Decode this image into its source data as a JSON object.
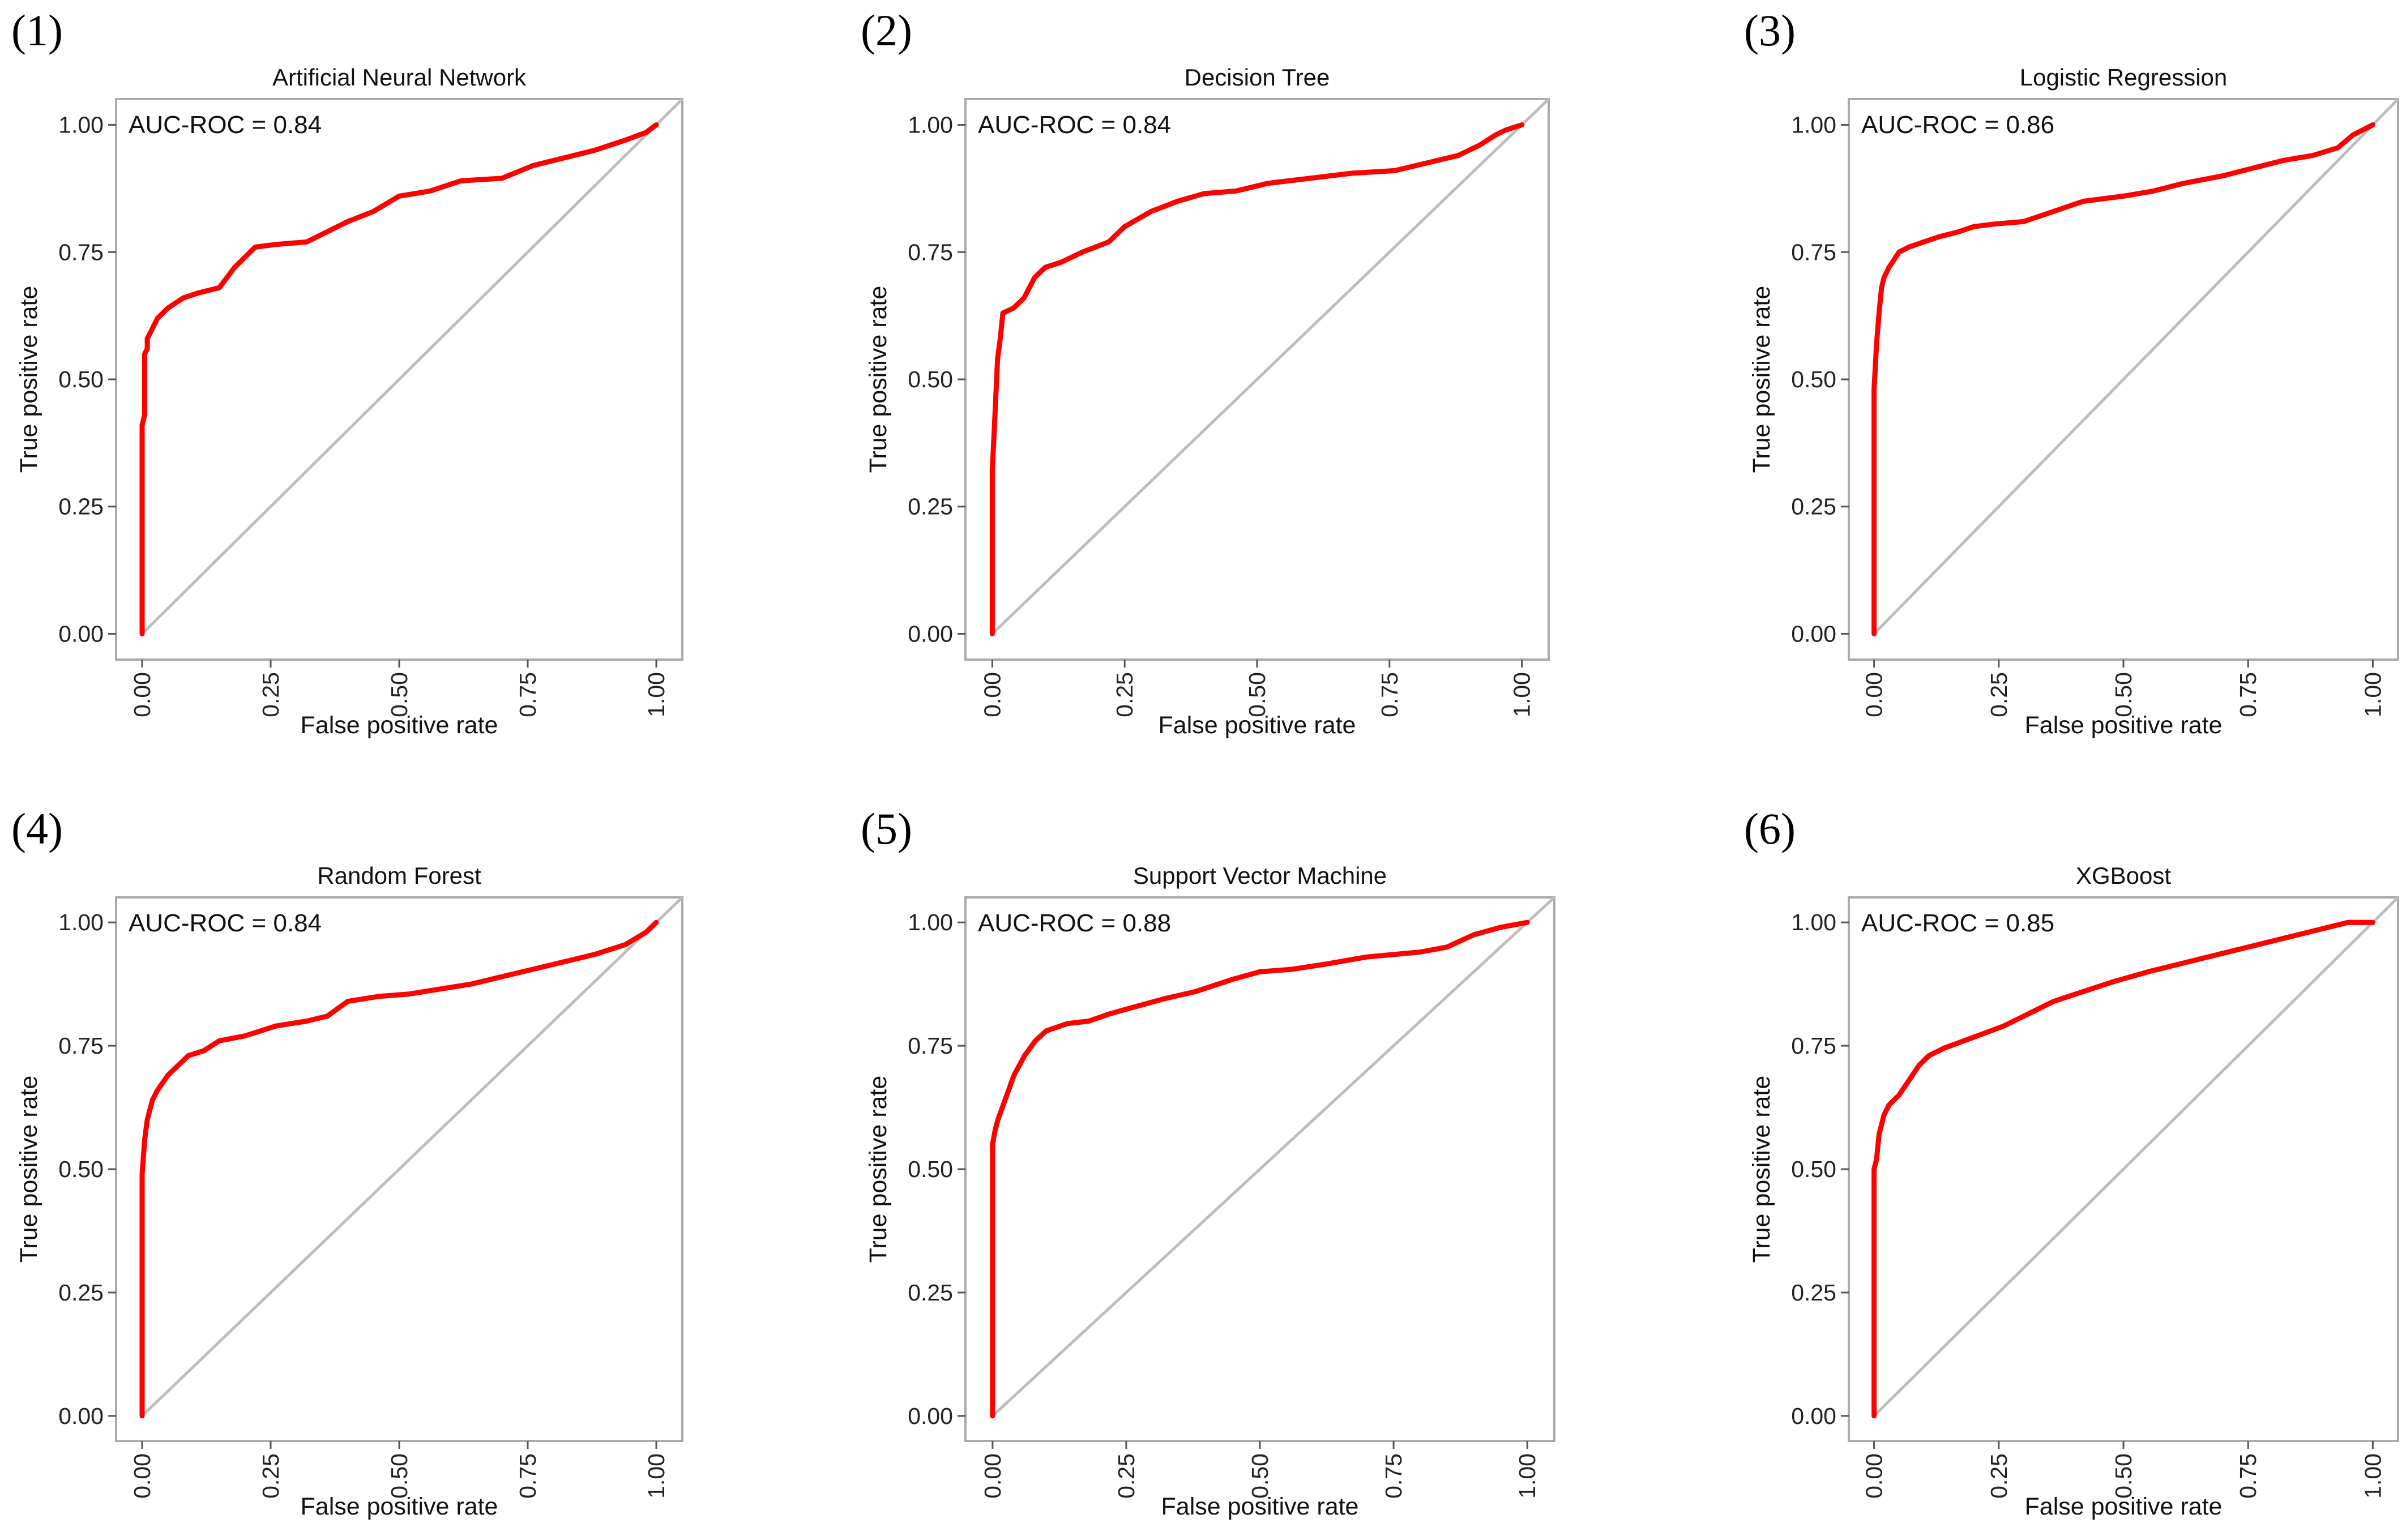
{
  "chart_data": [
    {
      "panel": "(1)",
      "type": "line",
      "title": "Artificial Neural Network",
      "xlabel": "False positive rate",
      "ylabel": "True positive rate",
      "annotation": "AUC-ROC = 0.84",
      "xlim": [
        0,
        1
      ],
      "ylim": [
        0,
        1
      ],
      "xticks": [
        "0.00",
        "0.25",
        "0.50",
        "0.75",
        "1.00"
      ],
      "yticks": [
        "0.00",
        "0.25",
        "0.50",
        "0.75",
        "1.00"
      ],
      "reference_line": "diagonal",
      "colors": {
        "roc": "#ff0000",
        "diagonal": "#bdbdbd",
        "frame": "#aaaaaa"
      },
      "x": [
        0,
        0,
        0.005,
        0.005,
        0.01,
        0.01,
        0.02,
        0.03,
        0.05,
        0.08,
        0.11,
        0.15,
        0.18,
        0.2,
        0.22,
        0.26,
        0.32,
        0.36,
        0.4,
        0.45,
        0.5,
        0.56,
        0.62,
        0.7,
        0.76,
        0.82,
        0.88,
        0.94,
        0.98,
        1
      ],
      "y": [
        0,
        0.41,
        0.43,
        0.55,
        0.56,
        0.58,
        0.6,
        0.62,
        0.64,
        0.66,
        0.67,
        0.68,
        0.72,
        0.74,
        0.76,
        0.765,
        0.77,
        0.79,
        0.81,
        0.83,
        0.86,
        0.87,
        0.89,
        0.895,
        0.92,
        0.935,
        0.95,
        0.97,
        0.985,
        1
      ]
    },
    {
      "panel": "(2)",
      "type": "line",
      "title": "Decision Tree",
      "xlabel": "False positive rate",
      "ylabel": "True positive rate",
      "annotation": "AUC-ROC = 0.84",
      "xlim": [
        0,
        1
      ],
      "ylim": [
        0,
        1
      ],
      "xticks": [
        "0.00",
        "0.25",
        "0.50",
        "0.75",
        "1.00"
      ],
      "yticks": [
        "0.00",
        "0.25",
        "0.50",
        "0.75",
        "1.00"
      ],
      "reference_line": "diagonal",
      "colors": {
        "roc": "#ff0000",
        "diagonal": "#bdbdbd",
        "frame": "#aaaaaa"
      },
      "x": [
        0,
        0,
        0.005,
        0.01,
        0.015,
        0.02,
        0.04,
        0.06,
        0.08,
        0.1,
        0.13,
        0.17,
        0.22,
        0.25,
        0.3,
        0.35,
        0.4,
        0.46,
        0.52,
        0.6,
        0.68,
        0.76,
        0.82,
        0.88,
        0.92,
        0.95,
        0.97,
        1
      ],
      "y": [
        0,
        0.32,
        0.43,
        0.54,
        0.58,
        0.63,
        0.64,
        0.66,
        0.7,
        0.72,
        0.73,
        0.75,
        0.77,
        0.8,
        0.83,
        0.85,
        0.865,
        0.87,
        0.885,
        0.895,
        0.905,
        0.91,
        0.925,
        0.94,
        0.96,
        0.98,
        0.99,
        1
      ]
    },
    {
      "panel": "(3)",
      "type": "line",
      "title": "Logistic Regression",
      "xlabel": "False positive rate",
      "ylabel": "True positive rate",
      "annotation": "AUC-ROC = 0.86",
      "xlim": [
        0,
        1
      ],
      "ylim": [
        0,
        1
      ],
      "xticks": [
        "0.00",
        "0.25",
        "0.50",
        "0.75",
        "1.00"
      ],
      "yticks": [
        "0.00",
        "0.25",
        "0.50",
        "0.75",
        "1.00"
      ],
      "reference_line": "diagonal",
      "colors": {
        "roc": "#ff0000",
        "diagonal": "#bdbdbd",
        "frame": "#aaaaaa"
      },
      "x": [
        0,
        0,
        0.005,
        0.01,
        0.015,
        0.02,
        0.03,
        0.05,
        0.07,
        0.1,
        0.13,
        0.17,
        0.2,
        0.24,
        0.3,
        0.36,
        0.42,
        0.5,
        0.56,
        0.62,
        0.7,
        0.76,
        0.82,
        0.88,
        0.93,
        0.96,
        1
      ],
      "y": [
        0,
        0.48,
        0.57,
        0.63,
        0.68,
        0.7,
        0.72,
        0.75,
        0.76,
        0.77,
        0.78,
        0.79,
        0.8,
        0.805,
        0.81,
        0.83,
        0.85,
        0.86,
        0.87,
        0.885,
        0.9,
        0.915,
        0.93,
        0.94,
        0.955,
        0.98,
        1
      ]
    },
    {
      "panel": "(4)",
      "type": "line",
      "title": "Random Forest",
      "xlabel": "False positive rate",
      "ylabel": "True positive rate",
      "annotation": "AUC-ROC = 0.84",
      "xlim": [
        0,
        1
      ],
      "ylim": [
        0,
        1
      ],
      "xticks": [
        "0.00",
        "0.25",
        "0.50",
        "0.75",
        "1.00"
      ],
      "yticks": [
        "0.00",
        "0.25",
        "0.50",
        "0.75",
        "1.00"
      ],
      "reference_line": "diagonal",
      "colors": {
        "roc": "#ff0000",
        "diagonal": "#bdbdbd",
        "frame": "#aaaaaa"
      },
      "x": [
        0,
        0,
        0.005,
        0.01,
        0.015,
        0.02,
        0.03,
        0.05,
        0.07,
        0.09,
        0.12,
        0.15,
        0.2,
        0.26,
        0.32,
        0.36,
        0.4,
        0.46,
        0.52,
        0.58,
        0.64,
        0.7,
        0.76,
        0.82,
        0.88,
        0.94,
        0.98,
        1
      ],
      "y": [
        0,
        0.49,
        0.56,
        0.6,
        0.62,
        0.64,
        0.66,
        0.69,
        0.71,
        0.73,
        0.74,
        0.76,
        0.77,
        0.79,
        0.8,
        0.81,
        0.84,
        0.85,
        0.855,
        0.865,
        0.875,
        0.89,
        0.905,
        0.92,
        0.935,
        0.955,
        0.98,
        1
      ]
    },
    {
      "panel": "(5)",
      "type": "line",
      "title": "Support Vector Machine",
      "xlabel": "False positive rate",
      "ylabel": "True positive rate",
      "annotation": "AUC-ROC = 0.88",
      "xlim": [
        0,
        1
      ],
      "ylim": [
        0,
        1
      ],
      "xticks": [
        "0.00",
        "0.25",
        "0.50",
        "0.75",
        "1.00"
      ],
      "yticks": [
        "0.00",
        "0.25",
        "0.50",
        "0.75",
        "1.00"
      ],
      "reference_line": "diagonal",
      "colors": {
        "roc": "#ff0000",
        "diagonal": "#bdbdbd",
        "frame": "#aaaaaa"
      },
      "x": [
        0,
        0,
        0.005,
        0.01,
        0.02,
        0.03,
        0.04,
        0.06,
        0.08,
        0.1,
        0.14,
        0.18,
        0.22,
        0.27,
        0.32,
        0.38,
        0.45,
        0.5,
        0.56,
        0.62,
        0.7,
        0.8,
        0.85,
        0.9,
        0.95,
        1
      ],
      "y": [
        0,
        0.55,
        0.58,
        0.6,
        0.63,
        0.66,
        0.69,
        0.73,
        0.76,
        0.78,
        0.795,
        0.8,
        0.815,
        0.83,
        0.845,
        0.86,
        0.885,
        0.9,
        0.905,
        0.915,
        0.93,
        0.94,
        0.95,
        0.975,
        0.99,
        1
      ]
    },
    {
      "panel": "(6)",
      "type": "line",
      "title": "XGBoost",
      "xlabel": "False positive rate",
      "ylabel": "True positive rate",
      "annotation": "AUC-ROC = 0.85",
      "xlim": [
        0,
        1
      ],
      "ylim": [
        0,
        1
      ],
      "xticks": [
        "0.00",
        "0.25",
        "0.50",
        "0.75",
        "1.00"
      ],
      "yticks": [
        "0.00",
        "0.25",
        "0.50",
        "0.75",
        "1.00"
      ],
      "reference_line": "diagonal",
      "colors": {
        "roc": "#ff0000",
        "diagonal": "#bdbdbd",
        "frame": "#aaaaaa"
      },
      "x": [
        0,
        0,
        0.005,
        0.01,
        0.015,
        0.02,
        0.03,
        0.05,
        0.07,
        0.09,
        0.11,
        0.14,
        0.18,
        0.22,
        0.26,
        0.3,
        0.36,
        0.42,
        0.48,
        0.55,
        0.65,
        0.75,
        0.85,
        0.95,
        1
      ],
      "y": [
        0,
        0.5,
        0.52,
        0.57,
        0.59,
        0.61,
        0.63,
        0.65,
        0.68,
        0.71,
        0.73,
        0.745,
        0.76,
        0.775,
        0.79,
        0.81,
        0.84,
        0.86,
        0.88,
        0.9,
        0.925,
        0.95,
        0.975,
        1,
        1
      ]
    }
  ]
}
